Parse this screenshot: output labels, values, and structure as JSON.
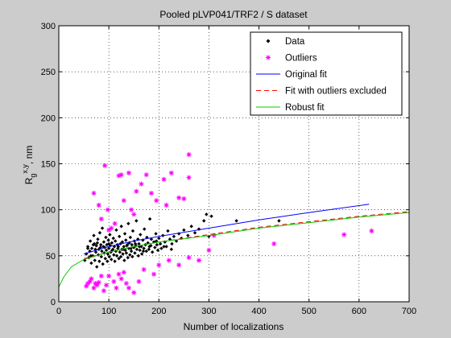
{
  "chart_data": {
    "type": "scatter",
    "title": "Pooled pLVP041/TRF2 / S dataset",
    "xlabel": "Number of localizations",
    "ylabel": {
      "base": "R",
      "sub": "g",
      "sup": "x,y",
      "unit": ", nm"
    },
    "xlim": [
      0,
      700
    ],
    "ylim": [
      0,
      300
    ],
    "x_ticks": [
      0,
      100,
      200,
      300,
      400,
      500,
      600,
      700
    ],
    "y_ticks": [
      0,
      50,
      100,
      150,
      200,
      250,
      300
    ],
    "grid": true,
    "legend_position": "top-right",
    "colors": {
      "data": "#000000",
      "outliers": "#ff00ff",
      "original_fit": "#0000ff",
      "fit_excluded": "#ff0000",
      "robust_fit": "#00cc00",
      "figure_bg": "#cccccc",
      "axes_bg": "#ffffff"
    },
    "series": [
      {
        "name": "Data",
        "kind": "points",
        "marker": "diamond",
        "points": [
          [
            52,
            45
          ],
          [
            55,
            52
          ],
          [
            58,
            60
          ],
          [
            60,
            48
          ],
          [
            62,
            55
          ],
          [
            63,
            66
          ],
          [
            65,
            42
          ],
          [
            66,
            58
          ],
          [
            68,
            50
          ],
          [
            70,
            72
          ],
          [
            71,
            63
          ],
          [
            72,
            45
          ],
          [
            74,
            54
          ],
          [
            75,
            61
          ],
          [
            76,
            38
          ],
          [
            78,
            68
          ],
          [
            79,
            51
          ],
          [
            80,
            57
          ],
          [
            81,
            44
          ],
          [
            82,
            75
          ],
          [
            84,
            62
          ],
          [
            85,
            49
          ],
          [
            86,
            55
          ],
          [
            87,
            80
          ],
          [
            88,
            41
          ],
          [
            90,
            65
          ],
          [
            91,
            53
          ],
          [
            92,
            59
          ],
          [
            93,
            47
          ],
          [
            94,
            70
          ],
          [
            95,
            56
          ],
          [
            96,
            62
          ],
          [
            97,
            44
          ],
          [
            98,
            52
          ],
          [
            99,
            67
          ],
          [
            100,
            58
          ],
          [
            101,
            49
          ],
          [
            102,
            73
          ],
          [
            103,
            61
          ],
          [
            104,
            54
          ],
          [
            105,
            46
          ],
          [
            106,
            64
          ],
          [
            108,
            57
          ],
          [
            109,
            69
          ],
          [
            110,
            51
          ],
          [
            111,
            60
          ],
          [
            112,
            44
          ],
          [
            113,
            66
          ],
          [
            114,
            55
          ],
          [
            115,
            78
          ],
          [
            116,
            50
          ],
          [
            117,
            62
          ],
          [
            118,
            58
          ],
          [
            120,
            47
          ],
          [
            121,
            71
          ],
          [
            122,
            54
          ],
          [
            123,
            63
          ],
          [
            124,
            49
          ],
          [
            125,
            82
          ],
          [
            126,
            57
          ],
          [
            127,
            65
          ],
          [
            128,
            52
          ],
          [
            130,
            60
          ],
          [
            131,
            45
          ],
          [
            132,
            74
          ],
          [
            133,
            56
          ],
          [
            134,
            67
          ],
          [
            135,
            53
          ],
          [
            136,
            61
          ],
          [
            138,
            48
          ],
          [
            139,
            85
          ],
          [
            140,
            58
          ],
          [
            141,
            64
          ],
          [
            142,
            51
          ],
          [
            143,
            70
          ],
          [
            145,
            55
          ],
          [
            146,
            62
          ],
          [
            147,
            49
          ],
          [
            148,
            77
          ],
          [
            150,
            59
          ],
          [
            151,
            66
          ],
          [
            152,
            53
          ],
          [
            154,
            61
          ],
          [
            155,
            88
          ],
          [
            156,
            57
          ],
          [
            158,
            68
          ],
          [
            159,
            50
          ],
          [
            160,
            63
          ],
          [
            162,
            56
          ],
          [
            163,
            73
          ],
          [
            165,
            60
          ],
          [
            166,
            52
          ],
          [
            168,
            67
          ],
          [
            170,
            58
          ],
          [
            171,
            79
          ],
          [
            173,
            62
          ],
          [
            175,
            55
          ],
          [
            176,
            70
          ],
          [
            178,
            64
          ],
          [
            180,
            57
          ],
          [
            182,
            90
          ],
          [
            184,
            61
          ],
          [
            185,
            68
          ],
          [
            187,
            54
          ],
          [
            190,
            65
          ],
          [
            192,
            59
          ],
          [
            194,
            74
          ],
          [
            196,
            62
          ],
          [
            198,
            56
          ],
          [
            200,
            69
          ],
          [
            203,
            63
          ],
          [
            205,
            58
          ],
          [
            208,
            72
          ],
          [
            212,
            65
          ],
          [
            215,
            60
          ],
          [
            218,
            77
          ],
          [
            222,
            68
          ],
          [
            226,
            63
          ],
          [
            230,
            71
          ],
          [
            235,
            66
          ],
          [
            240,
            74
          ],
          [
            245,
            69
          ],
          [
            250,
            78
          ],
          [
            258,
            72
          ],
          [
            265,
            82
          ],
          [
            272,
            75
          ],
          [
            280,
            79
          ],
          [
            290,
            88
          ],
          [
            295,
            95
          ],
          [
            300,
            71
          ],
          [
            305,
            93
          ],
          [
            355,
            88
          ],
          [
            440,
            88
          ],
          [
            58,
            58
          ],
          [
            64,
            50
          ],
          [
            69,
            62
          ],
          [
            73,
            57
          ],
          [
            77,
            64
          ],
          [
            83,
            59
          ],
          [
            89,
            60
          ],
          [
            100,
            63
          ],
          [
            107,
            56
          ],
          [
            119,
            60
          ],
          [
            129,
            57
          ],
          [
            137,
            62
          ],
          [
            144,
            58
          ],
          [
            153,
            63
          ],
          [
            161,
            60
          ],
          [
            169,
            55
          ],
          [
            181,
            60
          ],
          [
            195,
            66
          ],
          [
            210,
            60
          ],
          [
            225,
            57
          ]
        ]
      },
      {
        "name": "Outliers",
        "kind": "points",
        "marker": "asterisk",
        "points": [
          [
            70,
            118
          ],
          [
            80,
            105
          ],
          [
            85,
            90
          ],
          [
            92,
            148
          ],
          [
            98,
            100
          ],
          [
            100,
            78
          ],
          [
            105,
            80
          ],
          [
            112,
            85
          ],
          [
            120,
            137
          ],
          [
            125,
            138
          ],
          [
            130,
            110
          ],
          [
            140,
            140
          ],
          [
            145,
            100
          ],
          [
            150,
            95
          ],
          [
            155,
            120
          ],
          [
            165,
            128
          ],
          [
            175,
            138
          ],
          [
            185,
            118
          ],
          [
            195,
            110
          ],
          [
            210,
            133
          ],
          [
            215,
            105
          ],
          [
            225,
            140
          ],
          [
            240,
            113
          ],
          [
            250,
            112
          ],
          [
            260,
            160
          ],
          [
            260,
            135
          ],
          [
            55,
            17
          ],
          [
            58,
            20
          ],
          [
            62,
            22
          ],
          [
            65,
            25
          ],
          [
            70,
            15
          ],
          [
            73,
            20
          ],
          [
            76,
            18
          ],
          [
            80,
            21
          ],
          [
            85,
            28
          ],
          [
            90,
            12
          ],
          [
            95,
            18
          ],
          [
            100,
            28
          ],
          [
            110,
            22
          ],
          [
            115,
            15
          ],
          [
            120,
            30
          ],
          [
            125,
            25
          ],
          [
            130,
            32
          ],
          [
            135,
            20
          ],
          [
            140,
            15
          ],
          [
            150,
            10
          ],
          [
            160,
            22
          ],
          [
            170,
            35
          ],
          [
            190,
            30
          ],
          [
            200,
            40
          ],
          [
            220,
            45
          ],
          [
            240,
            40
          ],
          [
            260,
            48
          ],
          [
            280,
            45
          ],
          [
            300,
            56
          ],
          [
            310,
            72
          ],
          [
            430,
            63
          ],
          [
            570,
            73
          ],
          [
            625,
            77
          ]
        ]
      },
      {
        "name": "Original fit",
        "kind": "line",
        "points": [
          [
            50,
            52
          ],
          [
            100,
            60
          ],
          [
            150,
            66
          ],
          [
            200,
            71
          ],
          [
            300,
            80
          ],
          [
            400,
            89
          ],
          [
            500,
            97
          ],
          [
            620,
            106
          ]
        ]
      },
      {
        "name": "Fit with outliers excluded",
        "kind": "line",
        "dash": true,
        "points": [
          [
            50,
            47
          ],
          [
            100,
            54
          ],
          [
            150,
            60
          ],
          [
            200,
            65
          ],
          [
            300,
            73
          ],
          [
            400,
            81
          ],
          [
            500,
            87
          ],
          [
            600,
            93
          ],
          [
            700,
            98
          ]
        ]
      },
      {
        "name": "Robust fit",
        "kind": "line",
        "points": [
          [
            0,
            16
          ],
          [
            10,
            27
          ],
          [
            25,
            38
          ],
          [
            50,
            46
          ],
          [
            100,
            54
          ],
          [
            150,
            60
          ],
          [
            200,
            65
          ],
          [
            300,
            72
          ],
          [
            400,
            80
          ],
          [
            500,
            86
          ],
          [
            600,
            92
          ],
          [
            700,
            97
          ]
        ]
      }
    ]
  }
}
